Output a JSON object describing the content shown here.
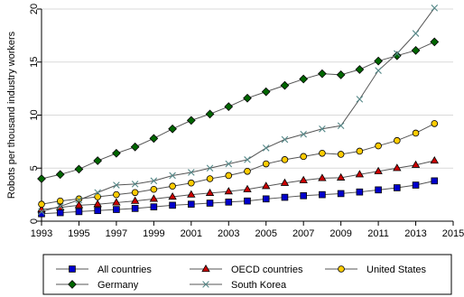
{
  "chart_data": {
    "type": "line",
    "title": "",
    "xlabel": "",
    "ylabel": "Robots per thousand industry workers",
    "xlim": [
      1993,
      2015
    ],
    "ylim": [
      0,
      20
    ],
    "x_ticks": [
      "1993",
      "1995",
      "1997",
      "1999",
      "2001",
      "2003",
      "2005",
      "2007",
      "2009",
      "2011",
      "2013",
      "2015"
    ],
    "y_ticks": [
      "0",
      "5",
      "10",
      "15",
      "20"
    ],
    "grid": "horizontal",
    "legend_position": "bottom",
    "x": [
      1993,
      1994,
      1995,
      1996,
      1997,
      1998,
      1999,
      2000,
      2001,
      2002,
      2003,
      2004,
      2005,
      2006,
      2007,
      2008,
      2009,
      2010,
      2011,
      2012,
      2013,
      2014
    ],
    "series": [
      {
        "name": "All countries",
        "marker": "square",
        "color": "#0000cc",
        "values": [
          0.7,
          0.8,
          0.9,
          1.0,
          1.1,
          1.2,
          1.35,
          1.5,
          1.6,
          1.7,
          1.8,
          1.9,
          2.1,
          2.25,
          2.4,
          2.5,
          2.6,
          2.75,
          2.95,
          3.15,
          3.4,
          3.8
        ]
      },
      {
        "name": "OECD countries",
        "marker": "triangle",
        "color": "#cc0000",
        "values": [
          1.1,
          1.3,
          1.5,
          1.6,
          1.75,
          1.9,
          2.1,
          2.3,
          2.5,
          2.65,
          2.8,
          3.0,
          3.3,
          3.6,
          3.85,
          4.05,
          4.1,
          4.4,
          4.7,
          5.0,
          5.3,
          5.7
        ]
      },
      {
        "name": "United States",
        "marker": "circle",
        "color": "#ffcc00",
        "values": [
          1.6,
          1.9,
          2.1,
          2.3,
          2.5,
          2.7,
          3.0,
          3.3,
          3.6,
          4.0,
          4.3,
          4.7,
          5.4,
          5.8,
          6.1,
          6.4,
          6.3,
          6.6,
          7.1,
          7.6,
          8.3,
          9.2
        ]
      },
      {
        "name": "Germany",
        "marker": "diamond",
        "color": "#006600",
        "values": [
          4.0,
          4.4,
          4.9,
          5.7,
          6.4,
          7.0,
          7.8,
          8.7,
          9.5,
          10.1,
          10.8,
          11.6,
          12.2,
          12.8,
          13.4,
          13.9,
          13.8,
          14.3,
          15.1,
          15.6,
          16.1,
          16.9
        ]
      },
      {
        "name": "South Korea",
        "marker": "x",
        "color": "#558888",
        "values": [
          0.9,
          1.4,
          2.0,
          2.7,
          3.4,
          3.5,
          3.8,
          4.3,
          4.6,
          5.0,
          5.4,
          5.8,
          6.9,
          7.7,
          8.2,
          8.7,
          9.0,
          11.5,
          14.2,
          15.8,
          17.7,
          20.1
        ]
      }
    ],
    "legend_rows": [
      [
        "All countries",
        "OECD countries",
        "United States"
      ],
      [
        "Germany",
        "South Korea"
      ]
    ]
  }
}
